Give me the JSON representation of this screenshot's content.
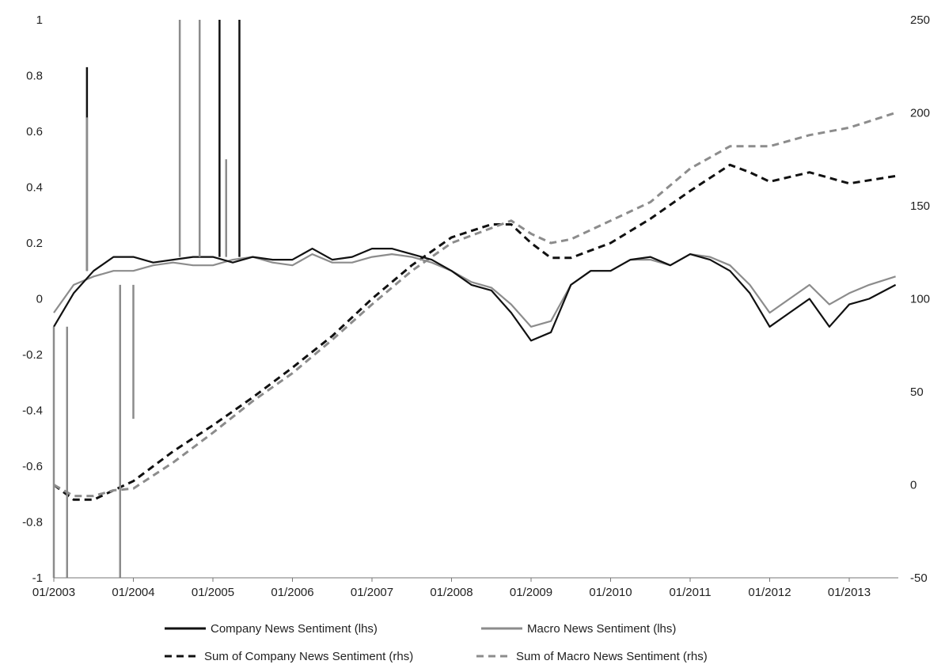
{
  "chart_data": {
    "type": "line",
    "x_axis": {
      "kind": "date",
      "min": "2003-01",
      "max": "2013-08",
      "tick_labels": [
        "01/2003",
        "01/2004",
        "01/2005",
        "01/2006",
        "01/2007",
        "01/2008",
        "01/2009",
        "01/2010",
        "01/2011",
        "01/2012",
        "01/2013"
      ]
    },
    "y_left": {
      "min": -1,
      "max": 1,
      "ticks": [
        -1,
        -0.8,
        -0.6,
        -0.4,
        -0.2,
        0,
        0.2,
        0.4,
        0.6,
        0.8,
        1
      ],
      "tick_labels": [
        "-1",
        "-0.8",
        "-0.6",
        "-0.4",
        "-0.2",
        "0",
        "0.2",
        "0.4",
        "0.6",
        "0.8",
        "1"
      ]
    },
    "y_right": {
      "min": -50,
      "max": 250,
      "ticks": [
        -50,
        0,
        50,
        100,
        150,
        200,
        250
      ],
      "tick_labels": [
        "-50",
        "0",
        "50",
        "100",
        "150",
        "200",
        "250"
      ]
    },
    "grid": false,
    "legend_position": "bottom",
    "series": [
      {
        "name": "Company News Sentiment (lhs)",
        "axis": "left",
        "style": "solid",
        "color": "#111111",
        "x": [
          "2003-01",
          "2003-04",
          "2003-07",
          "2003-10",
          "2004-01",
          "2004-04",
          "2004-07",
          "2004-10",
          "2005-01",
          "2005-04",
          "2005-07",
          "2005-10",
          "2006-01",
          "2006-04",
          "2006-07",
          "2006-10",
          "2007-01",
          "2007-04",
          "2007-07",
          "2007-10",
          "2008-01",
          "2008-04",
          "2008-07",
          "2008-10",
          "2009-01",
          "2009-04",
          "2009-07",
          "2009-10",
          "2010-01",
          "2010-04",
          "2010-07",
          "2010-10",
          "2011-01",
          "2011-04",
          "2011-07",
          "2011-10",
          "2012-01",
          "2012-04",
          "2012-07",
          "2012-10",
          "2013-01",
          "2013-04",
          "2013-08"
        ],
        "y": [
          -0.1,
          0.02,
          0.1,
          0.15,
          0.15,
          0.13,
          0.14,
          0.15,
          0.15,
          0.13,
          0.15,
          0.14,
          0.14,
          0.18,
          0.14,
          0.15,
          0.18,
          0.18,
          0.16,
          0.14,
          0.1,
          0.05,
          0.03,
          -0.05,
          -0.15,
          -0.12,
          0.05,
          0.1,
          0.1,
          0.14,
          0.15,
          0.12,
          0.16,
          0.14,
          0.1,
          0.02,
          -0.1,
          -0.05,
          0,
          -0.1,
          -0.02,
          0,
          0.05
        ]
      },
      {
        "name": "Macro News Sentiment (lhs)",
        "axis": "left",
        "style": "solid",
        "color": "#8c8c8c",
        "x": [
          "2003-01",
          "2003-04",
          "2003-07",
          "2003-10",
          "2004-01",
          "2004-04",
          "2004-07",
          "2004-10",
          "2005-01",
          "2005-04",
          "2005-07",
          "2005-10",
          "2006-01",
          "2006-04",
          "2006-07",
          "2006-10",
          "2007-01",
          "2007-04",
          "2007-07",
          "2007-10",
          "2008-01",
          "2008-04",
          "2008-07",
          "2008-10",
          "2009-01",
          "2009-04",
          "2009-07",
          "2009-10",
          "2010-01",
          "2010-04",
          "2010-07",
          "2010-10",
          "2011-01",
          "2011-04",
          "2011-07",
          "2011-10",
          "2012-01",
          "2012-04",
          "2012-07",
          "2012-10",
          "2013-01",
          "2013-04",
          "2013-08"
        ],
        "y": [
          -0.05,
          0.05,
          0.08,
          0.1,
          0.1,
          0.12,
          0.13,
          0.12,
          0.12,
          0.14,
          0.15,
          0.13,
          0.12,
          0.16,
          0.13,
          0.13,
          0.15,
          0.16,
          0.15,
          0.13,
          0.1,
          0.06,
          0.04,
          -0.02,
          -0.1,
          -0.08,
          0.05,
          0.1,
          0.1,
          0.14,
          0.14,
          0.12,
          0.16,
          0.15,
          0.12,
          0.05,
          -0.05,
          0,
          0.05,
          -0.02,
          0.02,
          0.05,
          0.08
        ]
      },
      {
        "name": "Sum of Company News Sentiment (rhs)",
        "axis": "right",
        "style": "dashed",
        "color": "#111111",
        "x": [
          "2003-01",
          "2003-04",
          "2003-07",
          "2003-10",
          "2004-01",
          "2004-07",
          "2005-01",
          "2005-07",
          "2006-01",
          "2006-07",
          "2007-01",
          "2007-07",
          "2008-01",
          "2008-07",
          "2008-10",
          "2009-01",
          "2009-04",
          "2009-07",
          "2010-01",
          "2010-07",
          "2011-01",
          "2011-07",
          "2011-10",
          "2012-01",
          "2012-07",
          "2013-01",
          "2013-08"
        ],
        "y": [
          0,
          -8,
          -8,
          -3,
          2,
          18,
          32,
          47,
          63,
          80,
          100,
          118,
          133,
          140,
          140,
          130,
          122,
          122,
          130,
          143,
          158,
          172,
          168,
          163,
          168,
          162,
          166
        ]
      },
      {
        "name": "Sum of Macro News Sentiment (rhs)",
        "axis": "right",
        "style": "dashed",
        "color": "#8c8c8c",
        "x": [
          "2003-01",
          "2003-04",
          "2003-07",
          "2003-10",
          "2004-01",
          "2004-07",
          "2005-01",
          "2005-07",
          "2006-01",
          "2006-07",
          "2007-01",
          "2007-07",
          "2008-01",
          "2008-07",
          "2008-10",
          "2009-01",
          "2009-04",
          "2009-07",
          "2010-01",
          "2010-07",
          "2011-01",
          "2011-07",
          "2011-10",
          "2012-01",
          "2012-07",
          "2013-01",
          "2013-08"
        ],
        "y": [
          0,
          -6,
          -6,
          -3,
          -2,
          12,
          28,
          45,
          60,
          78,
          97,
          115,
          130,
          138,
          142,
          135,
          130,
          132,
          142,
          152,
          170,
          182,
          182,
          182,
          188,
          192,
          200
        ]
      }
    ],
    "spikes": [
      {
        "series": "Company News Sentiment (lhs)",
        "date": "2003-06",
        "from": 0.1,
        "to": 0.83
      },
      {
        "series": "Macro News Sentiment (lhs)",
        "date": "2003-06",
        "from": 0.1,
        "to": 0.65
      },
      {
        "series": "Macro News Sentiment (lhs)",
        "date": "2004-08",
        "from": 0.15,
        "to": 1
      },
      {
        "series": "Macro News Sentiment (lhs)",
        "date": "2004-11",
        "from": 0.15,
        "to": 1
      },
      {
        "series": "Company News Sentiment (lhs)",
        "date": "2005-02",
        "from": 0.15,
        "to": 1
      },
      {
        "series": "Company News Sentiment (lhs)",
        "date": "2005-05",
        "from": 0.15,
        "to": 1
      },
      {
        "series": "Macro News Sentiment (lhs)",
        "date": "2005-03",
        "from": 0.15,
        "to": 0.5
      },
      {
        "series": "Macro News Sentiment (lhs)",
        "date": "2003-01",
        "from": -0.1,
        "to": -1
      },
      {
        "series": "Macro News Sentiment (lhs)",
        "date": "2003-03",
        "from": -0.1,
        "to": -1
      },
      {
        "series": "Macro News Sentiment (lhs)",
        "date": "2003-11",
        "from": 0.05,
        "to": -1
      },
      {
        "series": "Macro News Sentiment (lhs)",
        "date": "2004-01",
        "from": 0.05,
        "to": -0.43
      }
    ]
  }
}
